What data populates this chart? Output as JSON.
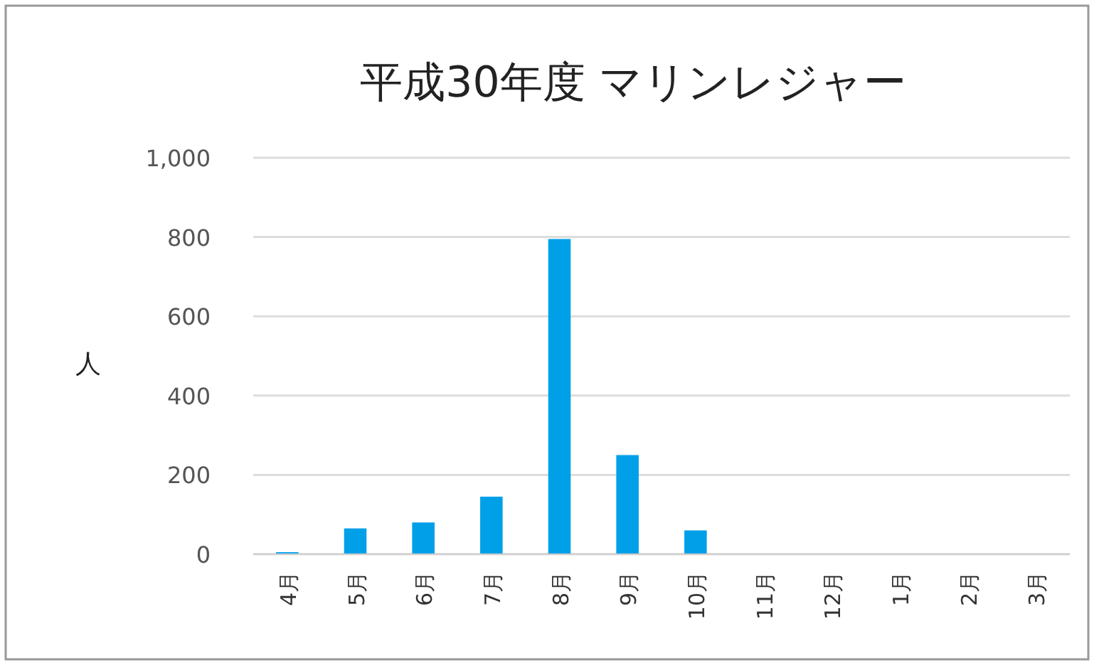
{
  "chart_data": {
    "type": "bar",
    "title": "平成30年度 マリンレジャー",
    "ylabel": "人",
    "categories": [
      "4月",
      "5月",
      "6月",
      "7月",
      "8月",
      "9月",
      "10月",
      "11月",
      "12月",
      "1月",
      "2月",
      "3月"
    ],
    "values": [
      5,
      65,
      80,
      145,
      795,
      250,
      60,
      0,
      0,
      0,
      0,
      0
    ],
    "color": "#00a0e9",
    "ylim": [
      0,
      1000
    ],
    "yticks": [
      0,
      200,
      400,
      600,
      800,
      {
        "value": 1000,
        "label": "1,000"
      }
    ],
    "grid": "y"
  }
}
